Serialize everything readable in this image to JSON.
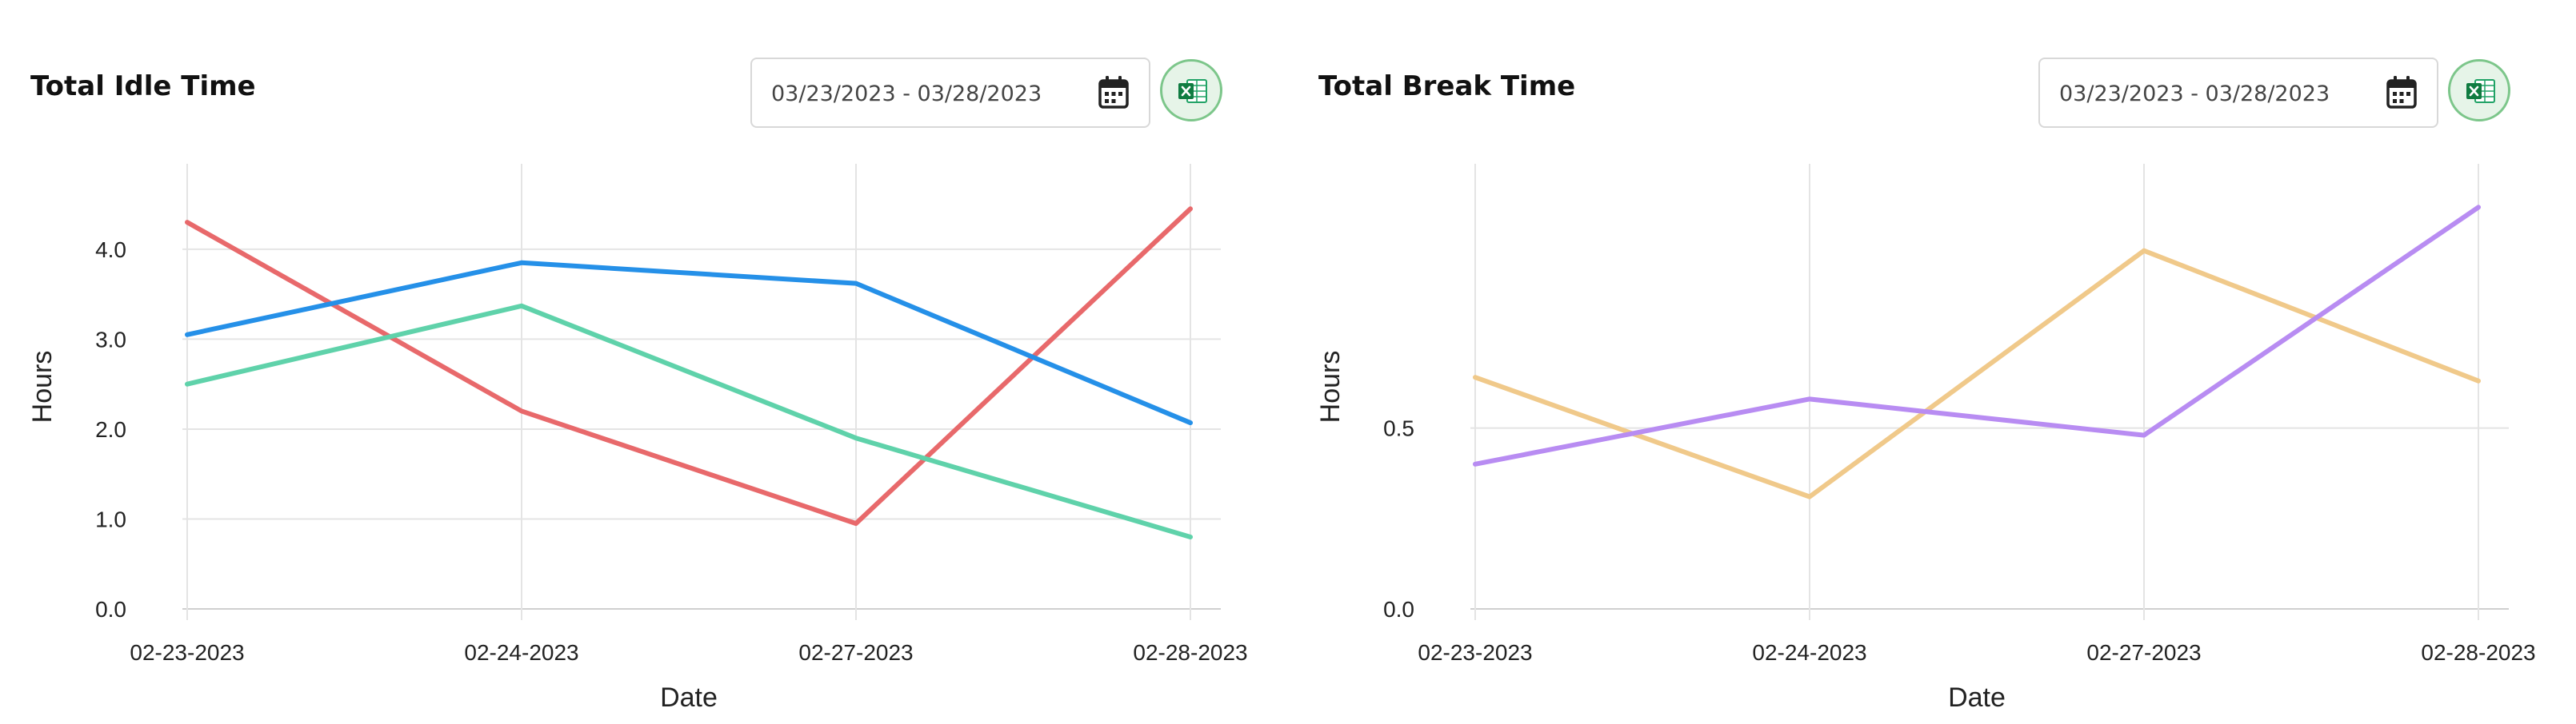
{
  "panels": [
    {
      "title": "Total Idle Time",
      "date_range": "03/23/2023 - 03/28/2023",
      "icons": {
        "date_picker": "calendar-icon",
        "export": "excel-icon"
      }
    },
    {
      "title": "Total Break Time",
      "date_range": "03/23/2023 - 03/28/2023",
      "icons": {
        "date_picker": "calendar-icon",
        "export": "excel-icon"
      }
    }
  ],
  "chart_data": [
    {
      "type": "line",
      "title": "Total Idle Time",
      "xlabel": "Date",
      "ylabel": "Hours",
      "categories": [
        "02-23-2023",
        "02-24-2023",
        "02-27-2023",
        "02-28-2023"
      ],
      "ylim": [
        0,
        4.95
      ],
      "yticks": [
        0,
        1,
        2,
        3,
        4
      ],
      "ytick_labels": [
        "0.0",
        "1.0",
        "2.0",
        "3.0",
        "4.0"
      ],
      "grid": true,
      "legend": "none",
      "series": [
        {
          "color": "#e8696b",
          "values": [
            4.3,
            2.2,
            0.95,
            4.45
          ]
        },
        {
          "color": "#2590e8",
          "values": [
            3.05,
            3.85,
            3.62,
            2.07
          ]
        },
        {
          "color": "#5fd2aa",
          "values": [
            2.5,
            3.37,
            1.9,
            0.8
          ]
        }
      ]
    },
    {
      "type": "line",
      "title": "Total Break Time",
      "xlabel": "Date",
      "ylabel": "Hours",
      "categories": [
        "02-23-2023",
        "02-24-2023",
        "02-27-2023",
        "02-28-2023"
      ],
      "ylim": [
        0,
        1.23
      ],
      "yticks": [
        0,
        0.5
      ],
      "ytick_labels": [
        "0.0",
        "0.5"
      ],
      "grid": true,
      "legend": "none",
      "series": [
        {
          "color": "#f0c98a",
          "values": [
            0.64,
            0.31,
            0.99,
            0.63
          ]
        },
        {
          "color": "#b88cf2",
          "values": [
            0.4,
            0.58,
            0.48,
            1.11
          ]
        }
      ]
    }
  ]
}
